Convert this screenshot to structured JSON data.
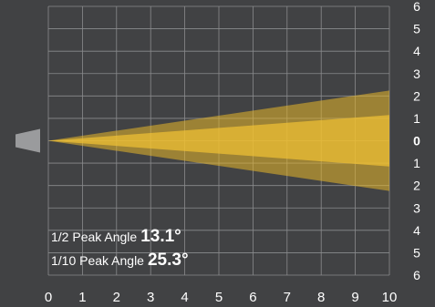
{
  "chart_data": {
    "type": "area",
    "x_ticks": [
      0,
      1,
      2,
      3,
      4,
      5,
      6,
      7,
      8,
      9,
      10
    ],
    "y_tick_labels": [
      "6",
      "5",
      "4",
      "3",
      "2",
      "1",
      "0",
      "1",
      "2",
      "3",
      "4",
      "5",
      "6"
    ],
    "y_bold_label": "0",
    "xlim": [
      0,
      10
    ],
    "ylim": [
      -6,
      6
    ],
    "grid": true,
    "series": [
      {
        "half_angle_deg": 12.65,
        "color": "#e8b82a",
        "opacity": 0.55
      },
      {
        "half_angle_deg": 6.55,
        "color": "#f2c234",
        "opacity": 0.7
      }
    ],
    "annotations": [
      {
        "label": "1/2 Peak Angle",
        "value": "13.1°"
      },
      {
        "label": "1/10 Peak Angle",
        "value": "25.3°"
      }
    ]
  },
  "colors": {
    "background": "#414244",
    "grid": "#8a8b8d",
    "source": "#9a9b9d",
    "text": "#ffffff"
  }
}
